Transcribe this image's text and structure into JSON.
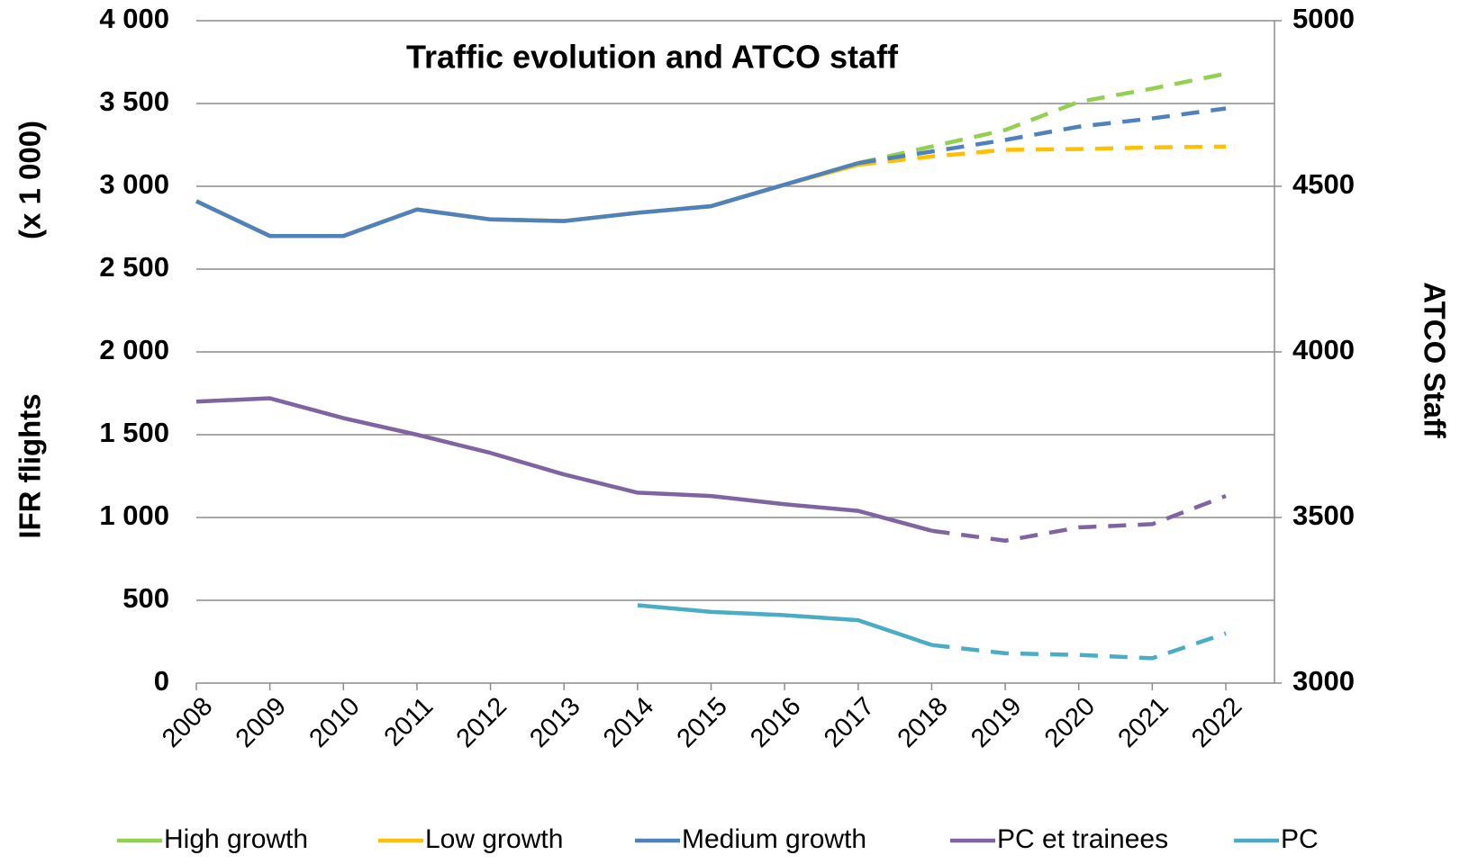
{
  "chart_data": {
    "type": "line",
    "title": "Traffic evolution and ATCO staff",
    "ylabel": "IFR   flights",
    "ylabel_unit": "(x 1 000)",
    "y2label": "ATCO Staff",
    "categories": [
      "2008",
      "2009",
      "2010",
      "2011",
      "2012",
      "2013",
      "2014",
      "2015",
      "2016",
      "2017",
      "2018",
      "2019",
      "2020",
      "2021",
      "2022"
    ],
    "ylim": [
      0,
      4000
    ],
    "yticks": [
      0,
      500,
      {
        "value": 1000,
        "label": "1 000"
      },
      {
        "value": 1500,
        "label": "1 500"
      },
      {
        "value": 2000,
        "label": "2 000"
      },
      {
        "value": 2500,
        "label": "2 500"
      },
      {
        "value": 3000,
        "label": "3 000"
      },
      {
        "value": 3500,
        "label": "3 500"
      },
      {
        "value": 4000,
        "label": "4 000"
      }
    ],
    "y2lim": [
      3000,
      5000
    ],
    "y2ticks": [
      3000,
      3500,
      4000,
      4500,
      5000
    ],
    "grid": true,
    "legend": "bottom",
    "series": [
      {
        "name": "High growth",
        "color": "#92d050",
        "dashed_from": "2017",
        "values": [
          2910,
          2700,
          2700,
          2860,
          2800,
          2790,
          2840,
          2880,
          3010,
          3140,
          3240,
          3340,
          3510,
          3590,
          3680
        ]
      },
      {
        "name": "Low growth",
        "color": "#ffc000",
        "dashed_from": "2017",
        "values": [
          2910,
          2700,
          2700,
          2860,
          2800,
          2790,
          2840,
          2880,
          3010,
          3130,
          3180,
          3220,
          3225,
          3235,
          3240
        ]
      },
      {
        "name": "Medium growth",
        "color": "#4f81bd",
        "dashed_from": "2017",
        "values": [
          2910,
          2700,
          2700,
          2860,
          2800,
          2790,
          2840,
          2880,
          3010,
          3140,
          3210,
          3280,
          3360,
          3410,
          3470
        ]
      },
      {
        "name": "PC et trainees",
        "color": "#8064a2",
        "axis": "y2",
        "dashed_from": "2018",
        "values": [
          3850,
          3860,
          3800,
          3750,
          3695,
          3630,
          3575,
          3565,
          3540,
          3520,
          3460,
          3430,
          3470,
          3480,
          3565
        ]
      },
      {
        "name": "PC",
        "color": "#4bacc6",
        "axis": "y2",
        "dashed_from": "2018",
        "values": [
          null,
          null,
          null,
          null,
          null,
          null,
          3235,
          3215,
          3205,
          3190,
          3115,
          3090,
          3085,
          3075,
          3150
        ]
      }
    ]
  }
}
